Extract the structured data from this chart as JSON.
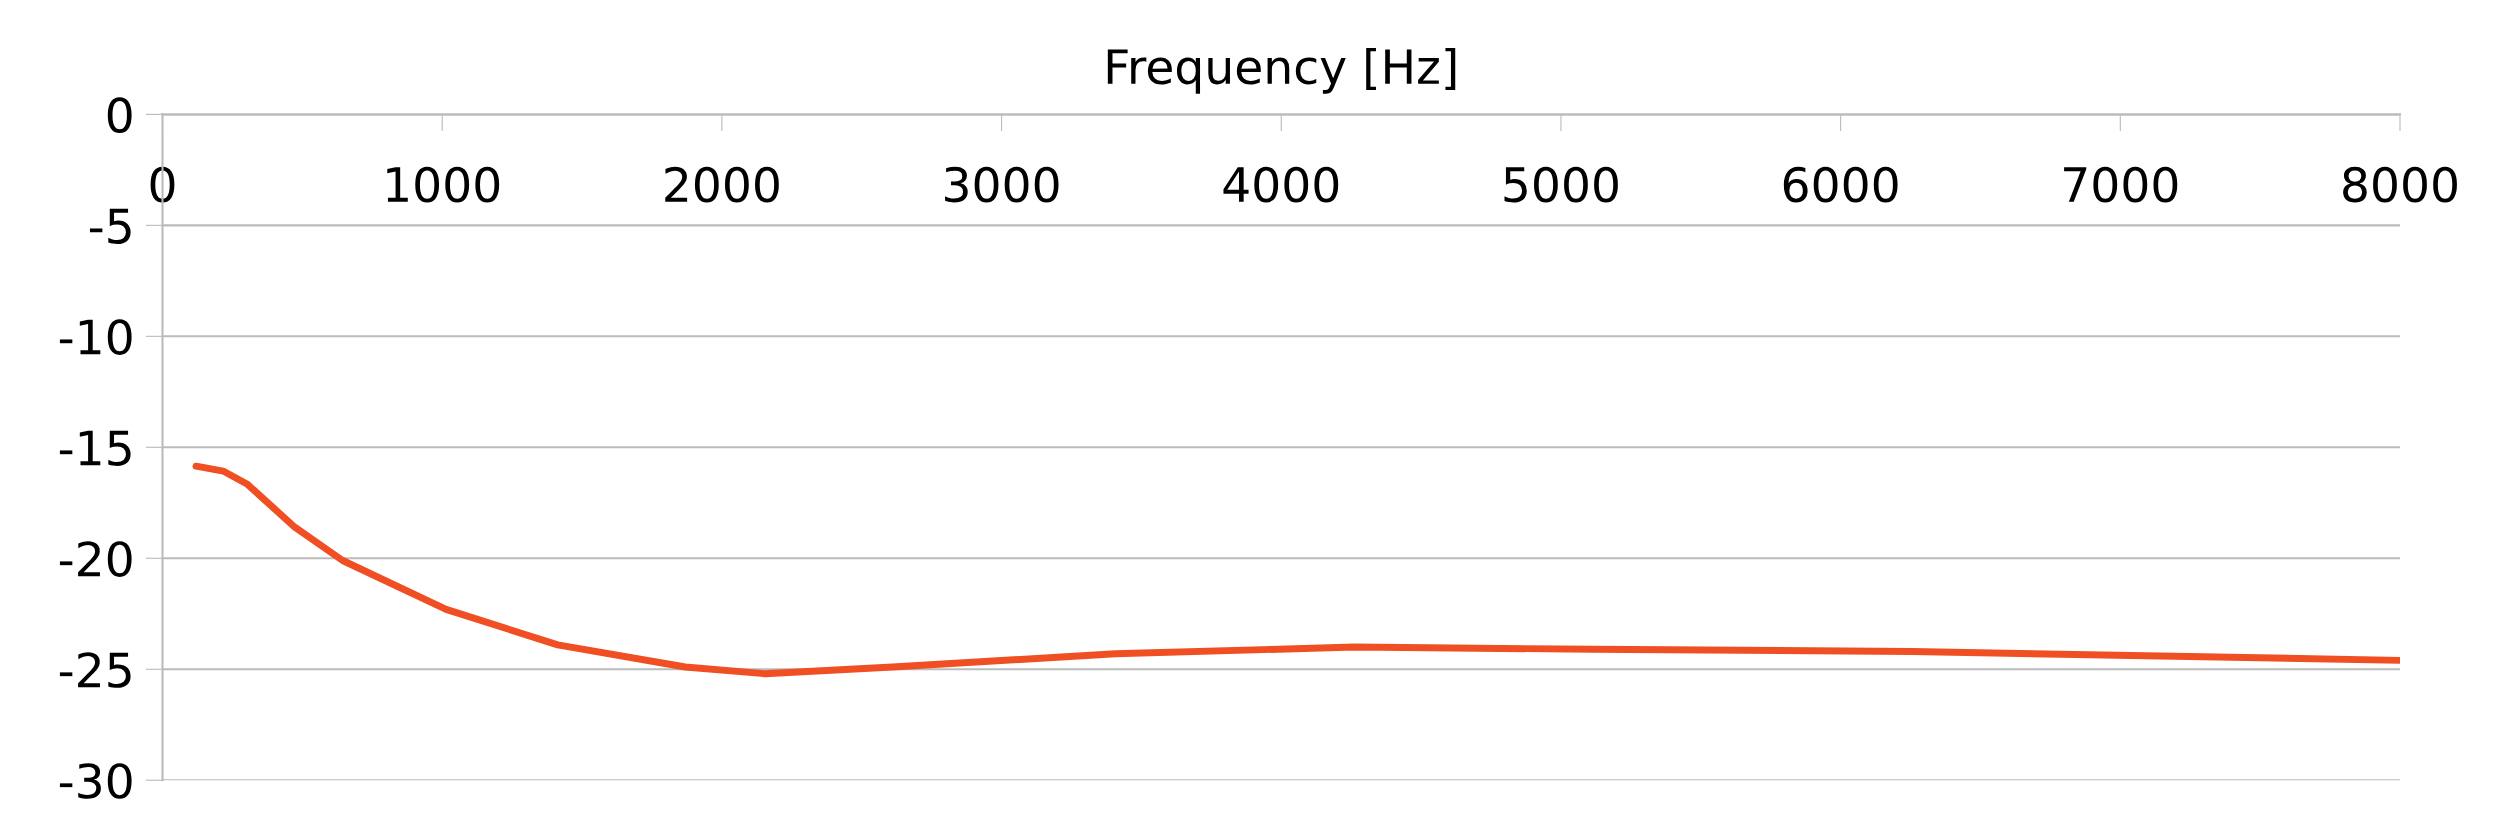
{
  "chart_data": {
    "type": "line",
    "xlabel": "Frequency [Hz]",
    "x": [
      120,
      217,
      302,
      473,
      644,
      1014,
      1413,
      1869,
      2154,
      2610,
      3407,
      4262,
      5117,
      6256,
      8000
    ],
    "series": [
      {
        "color": "#f04e23",
        "values": [
          -15.85,
          -16.07,
          -16.65,
          -18.6,
          -20.1,
          -22.3,
          -23.9,
          -24.9,
          -25.2,
          -24.9,
          -24.3,
          -24.0,
          -24.1,
          -24.2,
          -24.6
        ]
      }
    ],
    "xlim": [
      0,
      8000
    ],
    "xticks": [
      0,
      1000,
      2000,
      3000,
      4000,
      5000,
      6000,
      7000,
      8000
    ],
    "ylim": [
      -30,
      0
    ],
    "yticks": [
      -30,
      -25,
      -20,
      -15,
      -10,
      -5,
      0
    ],
    "grid": "y",
    "marker": "none",
    "line_style": "solid",
    "legend": false
  }
}
